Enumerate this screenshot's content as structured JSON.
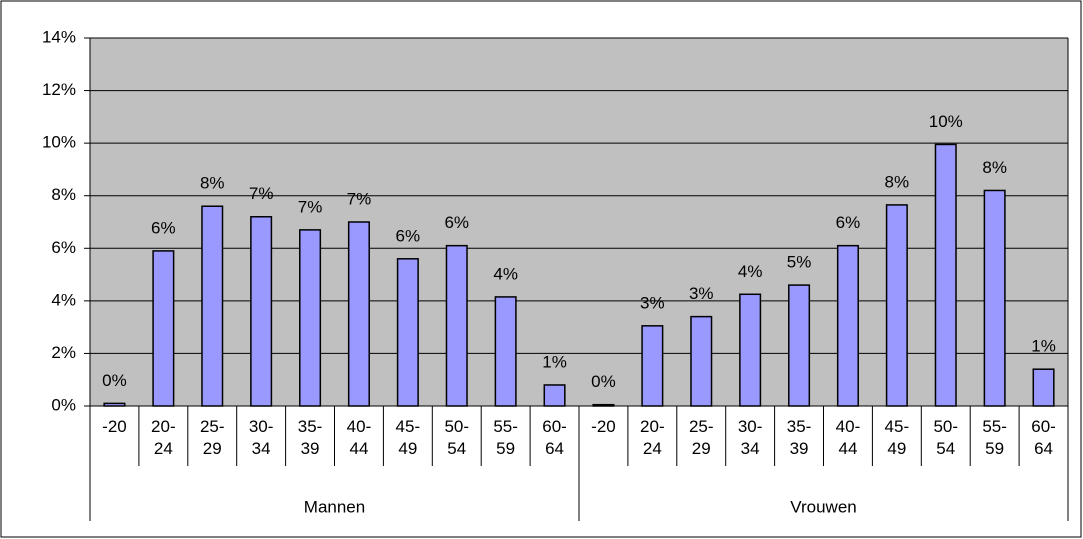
{
  "chart_data": {
    "type": "bar",
    "categories": [
      "-20",
      "20-\n24",
      "25-\n29",
      "30-\n34",
      "35-\n39",
      "40-\n44",
      "45-\n49",
      "50-\n54",
      "55-\n59",
      "60-\n64",
      "-20",
      "20-\n24",
      "25-\n29",
      "30-\n34",
      "35-\n39",
      "40-\n44",
      "45-\n49",
      "50-\n54",
      "55-\n59",
      "60-\n64"
    ],
    "groups": [
      "Mannen",
      "Vrouwen"
    ],
    "values": [
      0.1,
      5.9,
      7.6,
      7.2,
      6.7,
      7.0,
      5.6,
      6.1,
      4.15,
      0.8,
      0.05,
      3.05,
      3.4,
      4.25,
      4.6,
      6.1,
      7.65,
      9.95,
      8.2,
      1.4
    ],
    "value_labels": [
      "0%",
      "6%",
      "8%",
      "7%",
      "7%",
      "7%",
      "6%",
      "6%",
      "4%",
      "1%",
      "0%",
      "3%",
      "3%",
      "4%",
      "5%",
      "6%",
      "8%",
      "10%",
      "8%",
      "1%"
    ],
    "color": "#9999ff",
    "ylim": [
      0,
      14
    ],
    "yticks": [
      {
        "value": 0,
        "label": "0%"
      },
      {
        "value": 2,
        "label": "2%"
      },
      {
        "value": 4,
        "label": "4%"
      },
      {
        "value": 6,
        "label": "6%"
      },
      {
        "value": 8,
        "label": "8%"
      },
      {
        "value": 10,
        "label": "10%"
      },
      {
        "value": 12,
        "label": "12%"
      },
      {
        "value": 14,
        "label": "14%"
      }
    ],
    "grid": true
  }
}
